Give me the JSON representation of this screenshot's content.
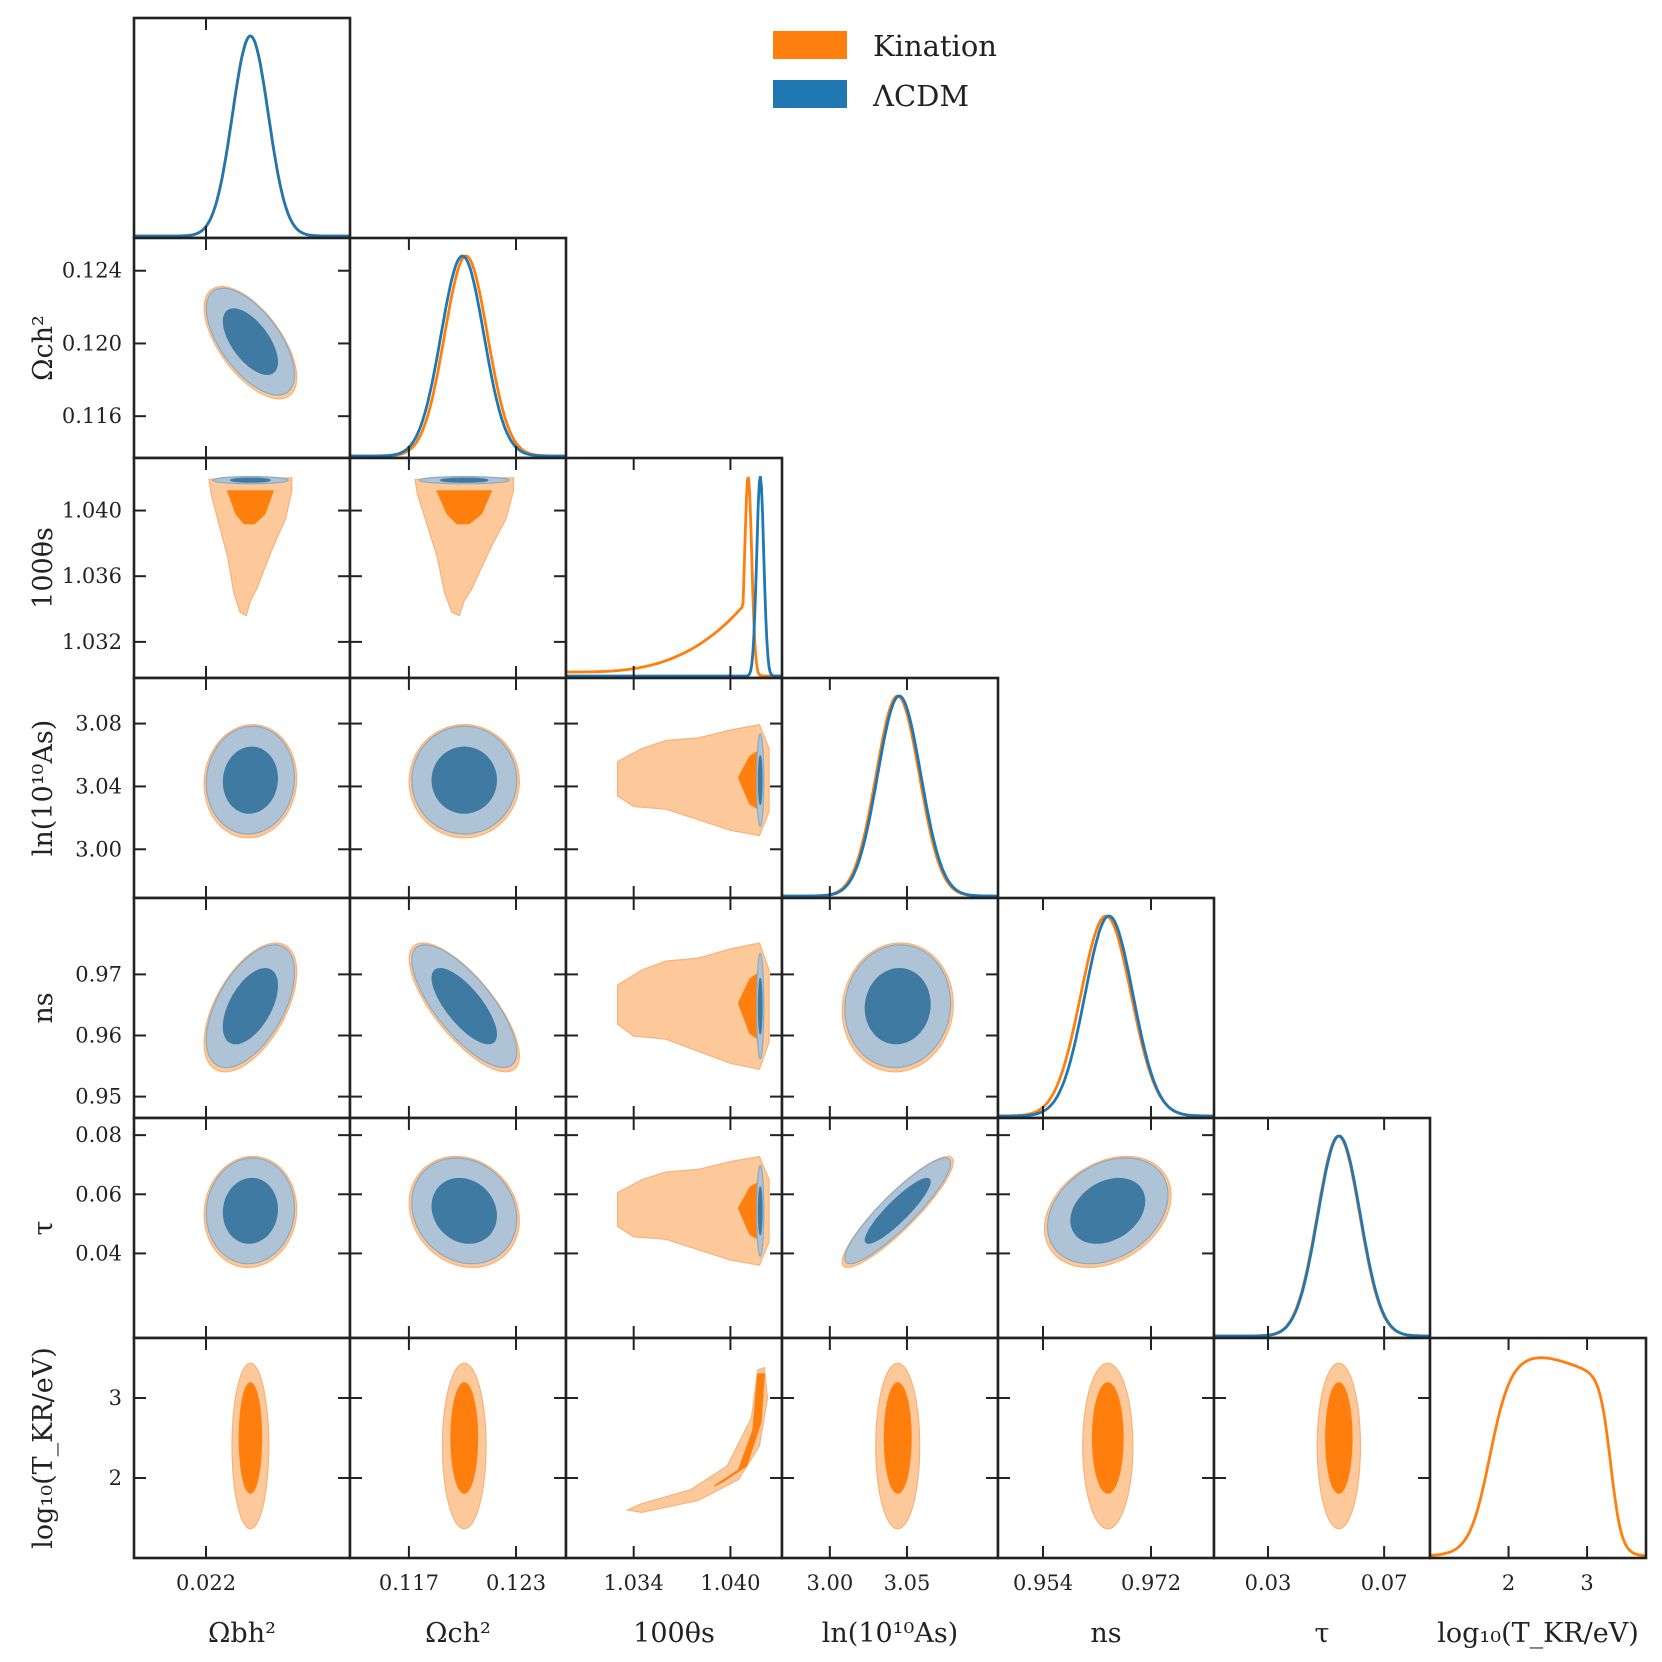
{
  "chart_data": {
    "type": "corner",
    "legend": {
      "placement": "top-right",
      "entries": [
        {
          "label": "Kination",
          "color": "#ff7f0e"
        },
        {
          "label": "ΛCDM",
          "color": "#1f77b4"
        }
      ]
    },
    "series": [
      {
        "name": "Kination",
        "color": "#ff7f0e",
        "fill_inner": "#ff7f0e",
        "fill_outer": "#fdc89a"
      },
      {
        "name": "ΛCDM",
        "color": "#1f77b4",
        "fill_inner": "#3f7aa2",
        "fill_outer": "#aec4d6"
      }
    ],
    "parameters": [
      {
        "label": "Ωbh²",
        "range": [
          0.0214,
          0.0232
        ],
        "ticks": [
          0.022
        ],
        "tick_labels": [
          "0.022"
        ]
      },
      {
        "label": "Ωch²",
        "range": [
          0.1137,
          0.1258
        ],
        "ticks": [
          0.117,
          0.123
        ],
        "tick_labels": [
          "0.117",
          "0.123"
        ],
        "yticks": [
          0.116,
          0.12,
          0.124
        ],
        "ytick_labels": [
          "0.116",
          "0.120",
          "0.124"
        ]
      },
      {
        "label": "100θs",
        "range": [
          1.0298,
          1.0432
        ],
        "ticks": [
          1.034,
          1.04
        ],
        "tick_labels": [
          "1.034",
          "1.040"
        ],
        "yticks": [
          1.032,
          1.036,
          1.04
        ],
        "ytick_labels": [
          "1.032",
          "1.036",
          "1.040"
        ]
      },
      {
        "label": "ln(10¹⁰As)",
        "range": [
          2.969,
          3.109
        ],
        "ticks": [
          3.0,
          3.05
        ],
        "tick_labels": [
          "3.00",
          "3.05"
        ],
        "yticks": [
          3.0,
          3.04,
          3.08
        ],
        "ytick_labels": [
          "3.00",
          "3.04",
          "3.08"
        ]
      },
      {
        "label": "ns",
        "range": [
          0.9465,
          0.9825
        ],
        "ticks": [
          0.954,
          0.972
        ],
        "tick_labels": [
          "0.954",
          "0.972"
        ],
        "yticks": [
          0.95,
          0.96,
          0.97
        ],
        "ytick_labels": [
          "0.95",
          "0.96",
          "0.97"
        ]
      },
      {
        "label": "τ",
        "range": [
          0.0114,
          0.0858
        ],
        "ticks": [
          0.03,
          0.07
        ],
        "tick_labels": [
          "0.03",
          "0.07"
        ],
        "yticks": [
          0.04,
          0.06,
          0.08
        ],
        "ytick_labels": [
          "0.04",
          "0.06",
          "0.08"
        ]
      },
      {
        "label": "log₁₀(T_KR/eV)",
        "range": [
          1.0,
          3.75
        ],
        "ticks": [
          2,
          3
        ],
        "tick_labels": [
          "2",
          "3"
        ],
        "yticks": [
          2,
          3
        ],
        "ytick_labels": [
          "2",
          "3"
        ]
      }
    ],
    "marginals": [
      {
        "param": 0,
        "Kination": {
          "mean": 0.02237,
          "sigma": 0.00015
        },
        "ΛCDM": {
          "mean": 0.02237,
          "sigma": 0.00015
        }
      },
      {
        "param": 1,
        "Kination": {
          "mean": 0.1202,
          "sigma": 0.0012
        },
        "ΛCDM": {
          "mean": 0.12,
          "sigma": 0.0012
        }
      },
      {
        "param": 2,
        "Kination": {
          "peak": 1.0411,
          "tail_to": 1.03
        },
        "ΛCDM": {
          "mean": 1.04185,
          "sigma": 0.0003
        }
      },
      {
        "param": 3,
        "Kination": {
          "mean": 3.044,
          "sigma": 0.014
        },
        "ΛCDM": {
          "mean": 3.045,
          "sigma": 0.014
        }
      },
      {
        "param": 4,
        "Kination": {
          "mean": 0.9645,
          "sigma": 0.0042
        },
        "ΛCDM": {
          "mean": 0.965,
          "sigma": 0.004
        }
      },
      {
        "param": 5,
        "Kination": {
          "mean": 0.0543,
          "sigma": 0.0073
        },
        "ΛCDM": {
          "mean": 0.0545,
          "sigma": 0.0073
        }
      },
      {
        "param": 6,
        "Kination": {
          "plateau": [
            1.45,
            3.25
          ]
        }
      }
    ],
    "contour_levels": [
      "68%",
      "95%"
    ]
  }
}
